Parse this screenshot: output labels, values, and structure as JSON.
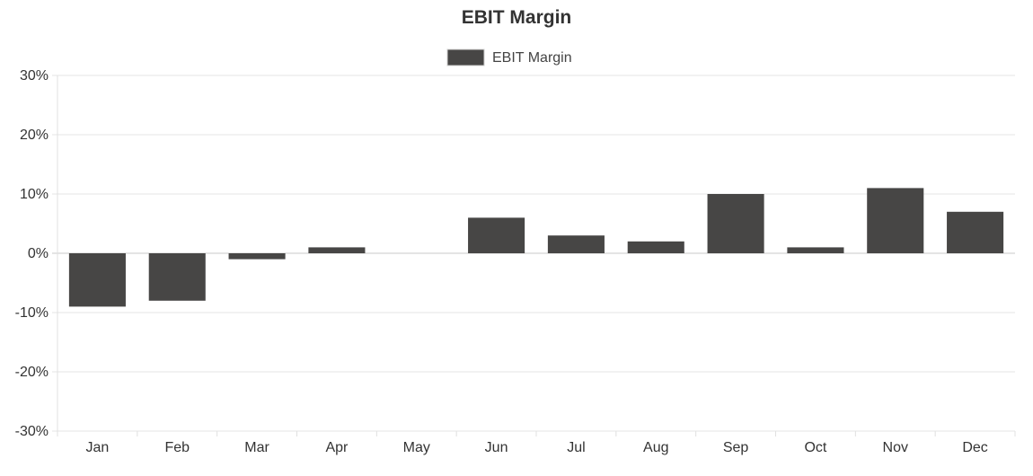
{
  "chart_data": {
    "type": "bar",
    "title": "EBIT Margin",
    "categories": [
      "Jan",
      "Feb",
      "Mar",
      "Apr",
      "May",
      "Jun",
      "Jul",
      "Aug",
      "Sep",
      "Oct",
      "Nov",
      "Dec"
    ],
    "series": [
      {
        "name": "EBIT Margin",
        "color": "#474645",
        "values": [
          -9,
          -8,
          -1,
          1,
          0,
          6,
          3,
          2,
          10,
          1,
          11,
          7
        ]
      }
    ],
    "xlabel": "",
    "ylabel": "",
    "ylim": [
      -30,
      30
    ],
    "yticks": [
      30,
      20,
      10,
      0,
      -10,
      -20,
      -30
    ],
    "ytick_labels": [
      "30%",
      "20%",
      "10%",
      "0%",
      "-10%",
      "-20%",
      "-30%"
    ],
    "grid": true,
    "legend_position": "top-center"
  }
}
